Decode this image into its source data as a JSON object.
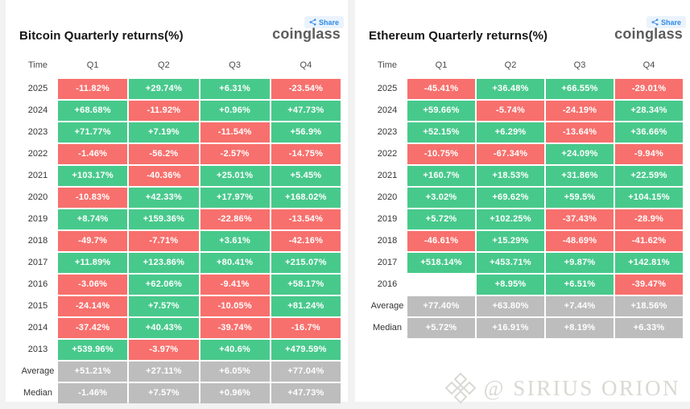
{
  "colors": {
    "green": "#48c98c",
    "red": "#f7706d",
    "gray": "#bdbdbd",
    "blue": "#2f8be6",
    "watermark": "#d9d9d4"
  },
  "share_label": "Share",
  "logo_text": "coinglass",
  "watermark": {
    "text": "@ SIRIUS ORION",
    "icon": "diamond-logo"
  },
  "chart_data": [
    {
      "type": "heatmap",
      "title": "Bitcoin Quarterly returns(%)",
      "columns": [
        "Time",
        "Q1",
        "Q2",
        "Q3",
        "Q4"
      ],
      "rows": [
        {
          "label": "2025",
          "type": "data",
          "cells": [
            "-11.82%",
            "+29.74%",
            "+6.31%",
            "-23.54%"
          ]
        },
        {
          "label": "2024",
          "type": "data",
          "cells": [
            "+68.68%",
            "-11.92%",
            "+0.96%",
            "+47.73%"
          ]
        },
        {
          "label": "2023",
          "type": "data",
          "cells": [
            "+71.77%",
            "+7.19%",
            "-11.54%",
            "+56.9%"
          ]
        },
        {
          "label": "2022",
          "type": "data",
          "cells": [
            "-1.46%",
            "-56.2%",
            "-2.57%",
            "-14.75%"
          ]
        },
        {
          "label": "2021",
          "type": "data",
          "cells": [
            "+103.17%",
            "-40.36%",
            "+25.01%",
            "+5.45%"
          ]
        },
        {
          "label": "2020",
          "type": "data",
          "cells": [
            "-10.83%",
            "+42.33%",
            "+17.97%",
            "+168.02%"
          ]
        },
        {
          "label": "2019",
          "type": "data",
          "cells": [
            "+8.74%",
            "+159.36%",
            "-22.86%",
            "-13.54%"
          ]
        },
        {
          "label": "2018",
          "type": "data",
          "cells": [
            "-49.7%",
            "-7.71%",
            "+3.61%",
            "-42.16%"
          ]
        },
        {
          "label": "2017",
          "type": "data",
          "cells": [
            "+11.89%",
            "+123.86%",
            "+80.41%",
            "+215.07%"
          ]
        },
        {
          "label": "2016",
          "type": "data",
          "cells": [
            "-3.06%",
            "+62.06%",
            "-9.41%",
            "+58.17%"
          ]
        },
        {
          "label": "2015",
          "type": "data",
          "cells": [
            "-24.14%",
            "+7.57%",
            "-10.05%",
            "+81.24%"
          ]
        },
        {
          "label": "2014",
          "type": "data",
          "cells": [
            "-37.42%",
            "+40.43%",
            "-39.74%",
            "-16.7%"
          ]
        },
        {
          "label": "2013",
          "type": "data",
          "cells": [
            "+539.96%",
            "-3.97%",
            "+40.6%",
            "+479.59%"
          ]
        },
        {
          "label": "Average",
          "type": "stat",
          "cells": [
            "+51.21%",
            "+27.11%",
            "+6.05%",
            "+77.04%"
          ]
        },
        {
          "label": "Median",
          "type": "stat",
          "cells": [
            "-1.46%",
            "+7.57%",
            "+0.96%",
            "+47.73%"
          ]
        }
      ]
    },
    {
      "type": "heatmap",
      "title": "Ethereum Quarterly returns(%)",
      "columns": [
        "Time",
        "Q1",
        "Q2",
        "Q3",
        "Q4"
      ],
      "rows": [
        {
          "label": "2025",
          "type": "data",
          "cells": [
            "-45.41%",
            "+36.48%",
            "+66.55%",
            "-29.01%"
          ]
        },
        {
          "label": "2024",
          "type": "data",
          "cells": [
            "+59.66%",
            "-5.74%",
            "-24.19%",
            "+28.34%"
          ]
        },
        {
          "label": "2023",
          "type": "data",
          "cells": [
            "+52.15%",
            "+6.29%",
            "-13.64%",
            "+36.66%"
          ]
        },
        {
          "label": "2022",
          "type": "data",
          "cells": [
            "-10.75%",
            "-67.34%",
            "+24.09%",
            "-9.94%"
          ]
        },
        {
          "label": "2021",
          "type": "data",
          "cells": [
            "+160.7%",
            "+18.53%",
            "+31.86%",
            "+22.59%"
          ]
        },
        {
          "label": "2020",
          "type": "data",
          "cells": [
            "+3.02%",
            "+69.62%",
            "+59.5%",
            "+104.15%"
          ]
        },
        {
          "label": "2019",
          "type": "data",
          "cells": [
            "+5.72%",
            "+102.25%",
            "-37.43%",
            "-28.9%"
          ]
        },
        {
          "label": "2018",
          "type": "data",
          "cells": [
            "-46.61%",
            "+15.29%",
            "-48.69%",
            "-41.62%"
          ]
        },
        {
          "label": "2017",
          "type": "data",
          "cells": [
            "+518.14%",
            "+453.71%",
            "+9.87%",
            "+142.81%"
          ]
        },
        {
          "label": "2016",
          "type": "data",
          "cells": [
            "",
            "+8.95%",
            "+6.51%",
            "-39.47%"
          ]
        },
        {
          "label": "Average",
          "type": "stat",
          "cells": [
            "+77.40%",
            "+63.80%",
            "+7.44%",
            "+18.56%"
          ]
        },
        {
          "label": "Median",
          "type": "stat",
          "cells": [
            "+5.72%",
            "+16.91%",
            "+8.19%",
            "+6.33%"
          ]
        }
      ]
    }
  ]
}
